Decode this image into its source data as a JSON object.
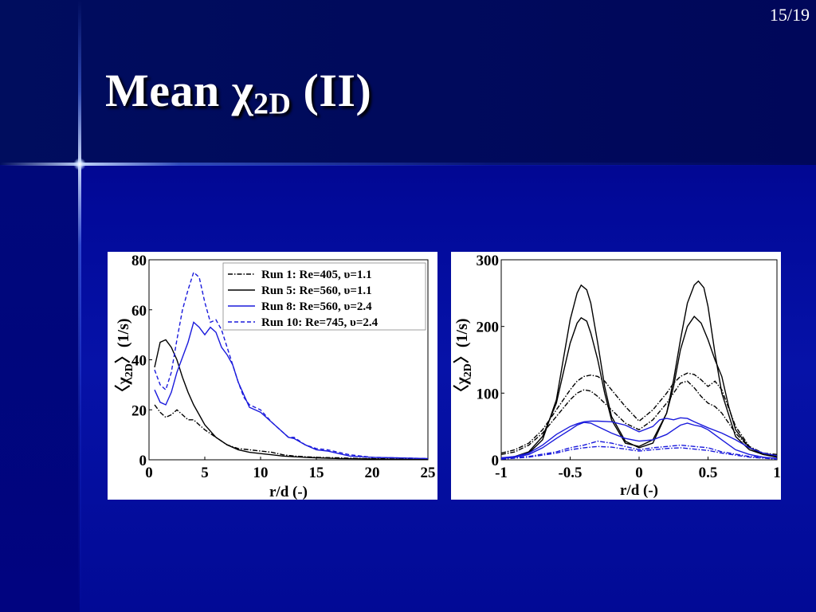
{
  "slide": {
    "page_number": "15/19",
    "title_prefix": "Mean χ",
    "title_subscript": "2D",
    "title_suffix": " (II)"
  },
  "colors": {
    "background": "#00008c",
    "black_series": "#000000",
    "blue_series": "#1a1adc",
    "panel": "#ffffff"
  },
  "chart_data": [
    {
      "type": "line",
      "title": "",
      "xlabel": "r/d (-)",
      "ylabel_main": "〈χ",
      "ylabel_sub": "2D",
      "ylabel_tail": "〉(1/s)",
      "xlim": [
        0,
        25
      ],
      "ylim": [
        0,
        80
      ],
      "xticks": [
        0,
        5,
        10,
        15,
        20,
        25
      ],
      "yticks": [
        0,
        20,
        40,
        60,
        80
      ],
      "grid": false,
      "legend": "top-right",
      "series": [
        {
          "name": "Run 1: Re=405, υ=1.1",
          "color": "#000000",
          "dash": "dashdot",
          "x": [
            0.5,
            1,
            1.5,
            2,
            2.5,
            3,
            3.5,
            4,
            4.5,
            5,
            6,
            7,
            8,
            9,
            10,
            11,
            12,
            13,
            14,
            15,
            17,
            19,
            21,
            23,
            25
          ],
          "y": [
            22,
            19,
            17,
            18,
            20,
            18,
            16,
            16,
            14,
            12,
            9,
            6,
            4.5,
            4,
            3.5,
            3,
            2,
            1.5,
            1.2,
            1,
            0.8,
            0.5,
            0.4,
            0.3,
            0.2
          ]
        },
        {
          "name": "Run 5: Re=560, υ=1.1",
          "color": "#000000",
          "dash": "solid",
          "x": [
            0.5,
            1,
            1.5,
            2,
            2.5,
            3,
            3.5,
            4,
            4.5,
            5,
            6,
            7,
            8,
            9,
            10,
            11,
            12,
            13,
            14,
            15,
            17,
            19,
            21,
            23,
            25
          ],
          "y": [
            37,
            47,
            48,
            45,
            40,
            33,
            27,
            22,
            18,
            14,
            9,
            6,
            4,
            3,
            2.5,
            2,
            1.5,
            1.2,
            1,
            0.8,
            0.5,
            0.4,
            0.3,
            0.2,
            0.2
          ]
        },
        {
          "name": "Run 8: Re=560, υ=2.4",
          "color": "#1a1adc",
          "dash": "solid",
          "x": [
            0.5,
            1,
            1.5,
            2,
            2.5,
            3,
            3.5,
            4,
            4.5,
            5,
            5.5,
            6,
            6.5,
            7,
            7.5,
            8,
            8.5,
            9,
            10,
            11,
            12,
            12.5,
            13,
            14,
            15,
            16,
            17,
            18,
            20,
            22,
            25
          ],
          "y": [
            28,
            23,
            22,
            27,
            35,
            41,
            47,
            55,
            53,
            50,
            53,
            51,
            45,
            42,
            38,
            31,
            26,
            21,
            19,
            15,
            11,
            9,
            8.5,
            6,
            4,
            3.5,
            2.5,
            1.5,
            1,
            0.8,
            0.5
          ]
        },
        {
          "name": "Run 10: Re=745, υ=2.4",
          "color": "#1a1adc",
          "dash": "dashed",
          "x": [
            0.5,
            1,
            1.5,
            2,
            2.5,
            3,
            3.5,
            4,
            4.5,
            5,
            5.5,
            6,
            6.5,
            7,
            7.5,
            8,
            8.5,
            9,
            10,
            11,
            12,
            12.5,
            13,
            14,
            15,
            16,
            17,
            18,
            20,
            22,
            25
          ],
          "y": [
            36,
            30,
            28,
            35,
            48,
            60,
            68,
            75,
            73,
            63,
            55,
            56,
            52,
            45,
            38,
            31,
            25,
            22,
            20,
            15,
            11,
            9,
            9,
            6,
            4.5,
            4,
            3,
            2,
            1,
            0.8,
            0.5
          ]
        }
      ]
    },
    {
      "type": "line",
      "title": "",
      "xlabel": "r/d (-)",
      "ylabel_main": "〈χ",
      "ylabel_sub": "2D",
      "ylabel_tail": "〉(1/s)",
      "xlim": [
        -1,
        1
      ],
      "ylim": [
        0,
        300
      ],
      "xticks": [
        -1,
        -0.5,
        0,
        0.5,
        1
      ],
      "yticks": [
        0,
        100,
        200,
        300
      ],
      "grid": false,
      "legend": "none",
      "series": [
        {
          "color": "#000000",
          "dash": "solid",
          "x": [
            -1,
            -0.9,
            -0.8,
            -0.7,
            -0.6,
            -0.55,
            -0.5,
            -0.45,
            -0.42,
            -0.38,
            -0.35,
            -0.3,
            -0.25,
            -0.2,
            -0.1,
            0,
            0.1,
            0.2,
            0.25,
            0.3,
            0.35,
            0.4,
            0.43,
            0.47,
            0.5,
            0.55,
            0.6,
            0.7,
            0.8,
            0.9,
            1
          ],
          "y": [
            2,
            4,
            10,
            30,
            90,
            150,
            210,
            250,
            262,
            255,
            235,
            175,
            110,
            65,
            28,
            18,
            25,
            70,
            120,
            180,
            235,
            262,
            268,
            258,
            230,
            160,
            100,
            35,
            15,
            8,
            5
          ]
        },
        {
          "color": "#000000",
          "dash": "solid",
          "x": [
            -1,
            -0.9,
            -0.8,
            -0.7,
            -0.6,
            -0.55,
            -0.5,
            -0.45,
            -0.42,
            -0.38,
            -0.35,
            -0.3,
            -0.25,
            -0.2,
            -0.1,
            0,
            0.1,
            0.2,
            0.25,
            0.3,
            0.35,
            0.4,
            0.45,
            0.5,
            0.55,
            0.6,
            0.65,
            0.7,
            0.8,
            0.9,
            1
          ],
          "y": [
            2,
            5,
            12,
            35,
            85,
            130,
            175,
            205,
            213,
            208,
            190,
            150,
            100,
            60,
            25,
            20,
            30,
            70,
            110,
            165,
            200,
            215,
            205,
            180,
            150,
            125,
            80,
            45,
            18,
            8,
            4
          ]
        },
        {
          "color": "#000000",
          "dash": "dashdot",
          "x": [
            -1,
            -0.9,
            -0.8,
            -0.7,
            -0.6,
            -0.5,
            -0.45,
            -0.4,
            -0.35,
            -0.3,
            -0.25,
            -0.2,
            -0.1,
            0,
            0.1,
            0.2,
            0.25,
            0.3,
            0.35,
            0.4,
            0.45,
            0.5,
            0.55,
            0.6,
            0.7,
            0.8,
            0.9,
            1
          ],
          "y": [
            10,
            15,
            25,
            45,
            75,
            105,
            118,
            125,
            127,
            125,
            118,
            105,
            80,
            58,
            75,
            100,
            115,
            125,
            130,
            128,
            120,
            110,
            118,
            105,
            50,
            20,
            10,
            8
          ]
        },
        {
          "color": "#000000",
          "dash": "dashdot",
          "x": [
            -1,
            -0.9,
            -0.8,
            -0.7,
            -0.6,
            -0.5,
            -0.45,
            -0.4,
            -0.35,
            -0.3,
            -0.25,
            -0.2,
            -0.1,
            0,
            0.1,
            0.2,
            0.25,
            0.3,
            0.35,
            0.4,
            0.45,
            0.5,
            0.55,
            0.6,
            0.7,
            0.8,
            0.9,
            1
          ],
          "y": [
            8,
            12,
            22,
            40,
            65,
            90,
            100,
            105,
            103,
            95,
            85,
            75,
            55,
            45,
            60,
            85,
            100,
            115,
            118,
            108,
            95,
            85,
            80,
            70,
            40,
            18,
            10,
            6
          ]
        },
        {
          "color": "#1a1adc",
          "dash": "solid",
          "x": [
            -1,
            -0.9,
            -0.8,
            -0.7,
            -0.6,
            -0.5,
            -0.45,
            -0.4,
            -0.35,
            -0.3,
            -0.2,
            -0.1,
            0,
            0.1,
            0.15,
            0.2,
            0.25,
            0.3,
            0.35,
            0.4,
            0.5,
            0.6,
            0.7,
            0.8,
            0.9,
            1
          ],
          "y": [
            3,
            5,
            10,
            22,
            38,
            50,
            54,
            57,
            58,
            58,
            57,
            52,
            42,
            50,
            60,
            62,
            60,
            63,
            62,
            57,
            48,
            40,
            30,
            18,
            10,
            6
          ]
        },
        {
          "color": "#1a1adc",
          "dash": "solid",
          "x": [
            -1,
            -0.9,
            -0.8,
            -0.7,
            -0.6,
            -0.5,
            -0.45,
            -0.4,
            -0.35,
            -0.3,
            -0.2,
            -0.1,
            0,
            0.1,
            0.2,
            0.25,
            0.3,
            0.35,
            0.4,
            0.45,
            0.5,
            0.6,
            0.7,
            0.8,
            0.9,
            1
          ],
          "y": [
            2,
            4,
            8,
            18,
            32,
            45,
            52,
            56,
            55,
            50,
            40,
            32,
            28,
            30,
            38,
            45,
            52,
            55,
            52,
            50,
            45,
            30,
            15,
            8,
            4,
            2
          ]
        },
        {
          "color": "#1a1adc",
          "dash": "dashdot",
          "x": [
            -1,
            -0.8,
            -0.6,
            -0.5,
            -0.4,
            -0.3,
            -0.2,
            -0.1,
            0,
            0.1,
            0.2,
            0.3,
            0.4,
            0.5,
            0.6,
            0.8,
            1
          ],
          "y": [
            2,
            5,
            12,
            18,
            22,
            28,
            25,
            20,
            15,
            18,
            20,
            22,
            20,
            18,
            12,
            5,
            2
          ]
        },
        {
          "color": "#1a1adc",
          "dash": "dashdot",
          "x": [
            -1,
            -0.8,
            -0.6,
            -0.5,
            -0.4,
            -0.3,
            -0.2,
            -0.1,
            0,
            0.1,
            0.2,
            0.3,
            0.4,
            0.5,
            0.6,
            0.8,
            1
          ],
          "y": [
            1,
            4,
            10,
            15,
            18,
            20,
            19,
            16,
            13,
            15,
            17,
            18,
            16,
            14,
            10,
            4,
            1
          ]
        }
      ]
    }
  ]
}
